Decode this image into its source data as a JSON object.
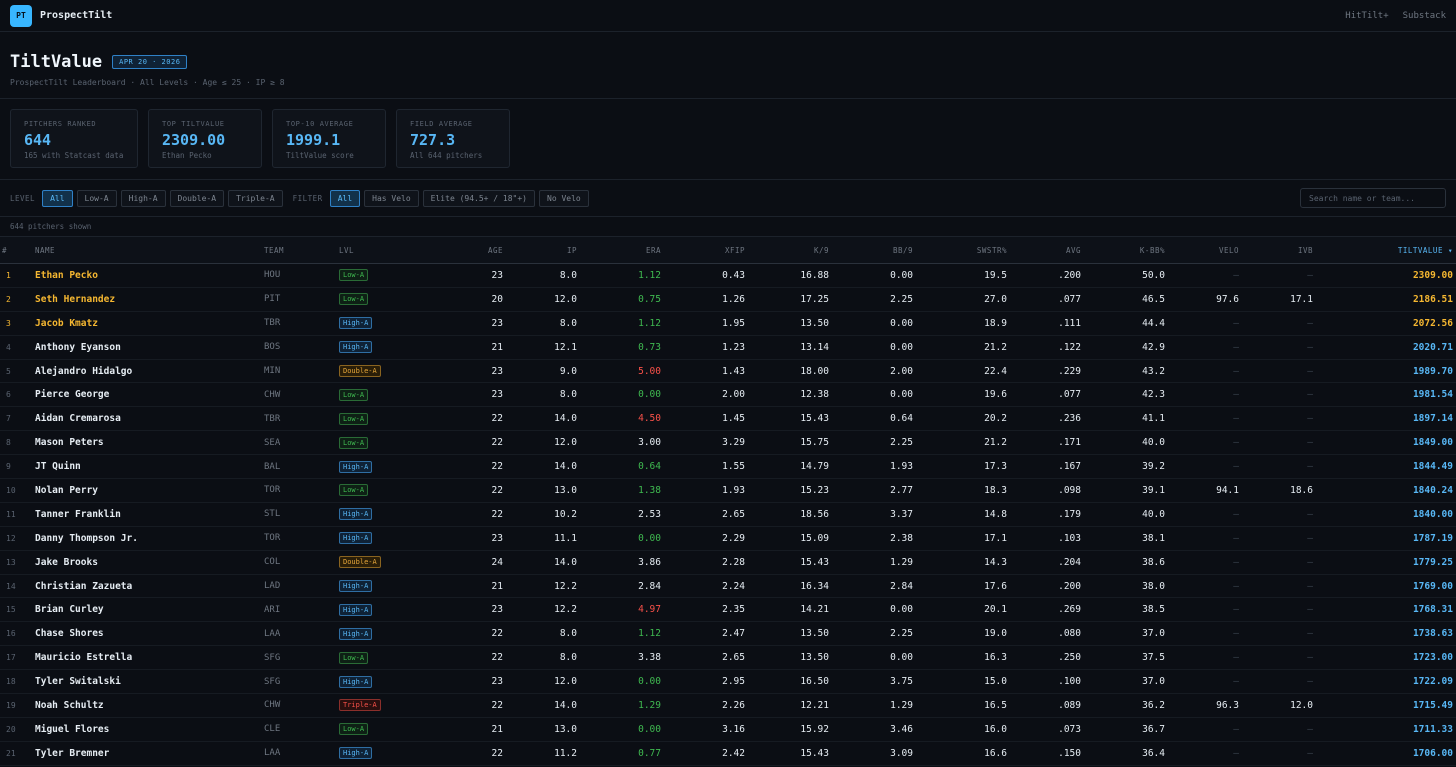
{
  "topbar": {
    "logo": "PT",
    "brand": "ProspectTilt",
    "nav": [
      "HitTilt+",
      "Substack"
    ]
  },
  "header": {
    "title": "TiltValue",
    "date_badge": "APR 20 · 2026",
    "subtitle": "ProspectTilt Leaderboard · All Levels · Age ≤ 25 · IP ≥ 8"
  },
  "stats": [
    {
      "label": "PITCHERS RANKED",
      "value": "644",
      "sub": "165 with Statcast data"
    },
    {
      "label": "TOP TILTVALUE",
      "value": "2309.00",
      "sub": "Ethan Pecko"
    },
    {
      "label": "TOP-10 AVERAGE",
      "value": "1999.1",
      "sub": "TiltValue score"
    },
    {
      "label": "FIELD AVERAGE",
      "value": "727.3",
      "sub": "All 644 pitchers"
    }
  ],
  "filters": {
    "level_label": "LEVEL",
    "levels": [
      "All",
      "Low-A",
      "High-A",
      "Double-A",
      "Triple-A"
    ],
    "filter_label": "FILTER",
    "filter_options": [
      "All",
      "Has Velo",
      "Elite (94.5+ / 18\"+)",
      "No Velo"
    ],
    "search_placeholder": "Search name or team..."
  },
  "count_text": "644 pitchers shown",
  "columns": [
    "#",
    "NAME",
    "TEAM",
    "LVL",
    "AGE",
    "IP",
    "ERA",
    "XFIP",
    "K/9",
    "BB/9",
    "SWSTR%",
    "AVG",
    "K-BB%",
    "VELO",
    "IVB",
    "TILTVALUE ▾"
  ],
  "rows": [
    [
      "1",
      "Ethan Pecko",
      "HOU",
      "Low-A",
      "23",
      "8.0",
      "1.12",
      "0.43",
      "16.88",
      "0.00",
      "19.5",
      ".200",
      "50.0",
      "–",
      "–",
      "2309.00"
    ],
    [
      "2",
      "Seth Hernandez",
      "PIT",
      "Low-A",
      "20",
      "12.0",
      "0.75",
      "1.26",
      "17.25",
      "2.25",
      "27.0",
      ".077",
      "46.5",
      "97.6",
      "17.1",
      "2186.51"
    ],
    [
      "3",
      "Jacob Kmatz",
      "TBR",
      "High-A",
      "23",
      "8.0",
      "1.12",
      "1.95",
      "13.50",
      "0.00",
      "18.9",
      ".111",
      "44.4",
      "–",
      "–",
      "2072.56"
    ],
    [
      "4",
      "Anthony Eyanson",
      "BOS",
      "High-A",
      "21",
      "12.1",
      "0.73",
      "1.23",
      "13.14",
      "0.00",
      "21.2",
      ".122",
      "42.9",
      "–",
      "–",
      "2020.71"
    ],
    [
      "5",
      "Alejandro Hidalgo",
      "MIN",
      "Double-A",
      "23",
      "9.0",
      "5.00",
      "1.43",
      "18.00",
      "2.00",
      "22.4",
      ".229",
      "43.2",
      "–",
      "–",
      "1989.70"
    ],
    [
      "6",
      "Pierce George",
      "CHW",
      "Low-A",
      "23",
      "8.0",
      "0.00",
      "2.00",
      "12.38",
      "0.00",
      "19.6",
      ".077",
      "42.3",
      "–",
      "–",
      "1981.54"
    ],
    [
      "7",
      "Aidan Cremarosa",
      "TBR",
      "Low-A",
      "22",
      "14.0",
      "4.50",
      "1.45",
      "15.43",
      "0.64",
      "20.2",
      ".236",
      "41.1",
      "–",
      "–",
      "1897.14"
    ],
    [
      "8",
      "Mason Peters",
      "SEA",
      "Low-A",
      "22",
      "12.0",
      "3.00",
      "3.29",
      "15.75",
      "2.25",
      "21.2",
      ".171",
      "40.0",
      "–",
      "–",
      "1849.00"
    ],
    [
      "9",
      "JT Quinn",
      "BAL",
      "High-A",
      "22",
      "14.0",
      "0.64",
      "1.55",
      "14.79",
      "1.93",
      "17.3",
      ".167",
      "39.2",
      "–",
      "–",
      "1844.49"
    ],
    [
      "10",
      "Nolan Perry",
      "TOR",
      "Low-A",
      "22",
      "13.0",
      "1.38",
      "1.93",
      "15.23",
      "2.77",
      "18.3",
      ".098",
      "39.1",
      "94.1",
      "18.6",
      "1840.24"
    ],
    [
      "11",
      "Tanner Franklin",
      "STL",
      "High-A",
      "22",
      "10.2",
      "2.53",
      "2.65",
      "18.56",
      "3.37",
      "14.8",
      ".179",
      "40.0",
      "–",
      "–",
      "1840.00"
    ],
    [
      "12",
      "Danny Thompson Jr.",
      "TOR",
      "High-A",
      "23",
      "11.1",
      "0.00",
      "2.29",
      "15.09",
      "2.38",
      "17.1",
      ".103",
      "38.1",
      "–",
      "–",
      "1787.19"
    ],
    [
      "13",
      "Jake Brooks",
      "COL",
      "Double-A",
      "24",
      "14.0",
      "3.86",
      "2.28",
      "15.43",
      "1.29",
      "14.3",
      ".204",
      "38.6",
      "–",
      "–",
      "1779.25"
    ],
    [
      "14",
      "Christian Zazueta",
      "LAD",
      "High-A",
      "21",
      "12.2",
      "2.84",
      "2.24",
      "16.34",
      "2.84",
      "17.6",
      ".200",
      "38.0",
      "–",
      "–",
      "1769.00"
    ],
    [
      "15",
      "Brian Curley",
      "ARI",
      "High-A",
      "23",
      "12.2",
      "4.97",
      "2.35",
      "14.21",
      "0.00",
      "20.1",
      ".269",
      "38.5",
      "–",
      "–",
      "1768.31"
    ],
    [
      "16",
      "Chase Shores",
      "LAA",
      "High-A",
      "22",
      "8.0",
      "1.12",
      "2.47",
      "13.50",
      "2.25",
      "19.0",
      ".080",
      "37.0",
      "–",
      "–",
      "1738.63"
    ],
    [
      "17",
      "Mauricio Estrella",
      "SFG",
      "Low-A",
      "22",
      "8.0",
      "3.38",
      "2.65",
      "13.50",
      "0.00",
      "16.3",
      ".250",
      "37.5",
      "–",
      "–",
      "1723.00"
    ],
    [
      "18",
      "Tyler Switalski",
      "SFG",
      "High-A",
      "23",
      "12.0",
      "0.00",
      "2.95",
      "16.50",
      "3.75",
      "15.0",
      ".100",
      "37.0",
      "–",
      "–",
      "1722.09"
    ],
    [
      "19",
      "Noah Schultz",
      "CHW",
      "Triple-A",
      "22",
      "14.0",
      "1.29",
      "2.26",
      "12.21",
      "1.29",
      "16.5",
      ".089",
      "36.2",
      "96.3",
      "12.0",
      "1715.49"
    ],
    [
      "20",
      "Miguel Flores",
      "CLE",
      "Low-A",
      "21",
      "13.0",
      "0.00",
      "3.16",
      "15.92",
      "3.46",
      "16.0",
      ".073",
      "36.7",
      "–",
      "–",
      "1711.33"
    ],
    [
      "21",
      "Tyler Bremner",
      "LAA",
      "High-A",
      "22",
      "11.2",
      "0.77",
      "2.42",
      "15.43",
      "3.09",
      "16.6",
      ".150",
      "36.4",
      "–",
      "–",
      "1706.00"
    ]
  ]
}
